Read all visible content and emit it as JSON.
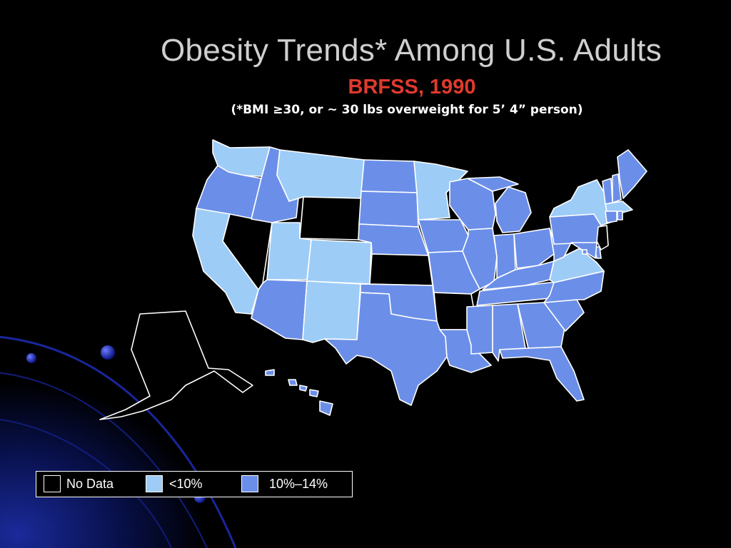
{
  "slide": {
    "title": "Obesity Trends* Among U.S. Adults",
    "subtitle": "BRFSS, 1990",
    "note": "(*BMI ≥30, or ~ 30 lbs overweight for 5’ 4” person)"
  },
  "legend": {
    "items": [
      {
        "label": "No Data",
        "color": "#000000"
      },
      {
        "label": "<10%",
        "color": "#9dccf7"
      },
      {
        "label": "10%–14%",
        "color": "#6b8fe8"
      }
    ]
  },
  "map_data": {
    "categories": {
      "nodata": "#000000",
      "low": "#9dccf7",
      "mid": "#6b8fe8"
    },
    "states": {
      "WA": "low",
      "OR": "mid",
      "CA": "low",
      "NV": "nodata",
      "ID": "mid",
      "MT": "low",
      "WY": "nodata",
      "UT": "low",
      "CO": "low",
      "AZ": "mid",
      "NM": "low",
      "ND": "mid",
      "SD": "mid",
      "NE": "mid",
      "KS": "nodata",
      "OK": "mid",
      "TX": "mid",
      "MN": "low",
      "IA": "mid",
      "MO": "mid",
      "AR": "nodata",
      "LA": "mid",
      "WI": "mid",
      "IL": "mid",
      "MI": "mid",
      "IN": "mid",
      "OH": "mid",
      "KY": "mid",
      "TN": "mid",
      "MS": "mid",
      "AL": "mid",
      "GA": "mid",
      "FL": "mid",
      "SC": "mid",
      "NC": "mid",
      "VA": "low",
      "WV": "mid",
      "PA": "mid",
      "NY": "low",
      "ME": "mid",
      "NH": "mid",
      "VT": "mid",
      "MA": "low",
      "CT": "mid",
      "RI": "mid",
      "NJ": "nodata",
      "DE": "mid",
      "MD": "mid",
      "DC": "mid",
      "AK": "nodata",
      "HI": "mid"
    }
  }
}
